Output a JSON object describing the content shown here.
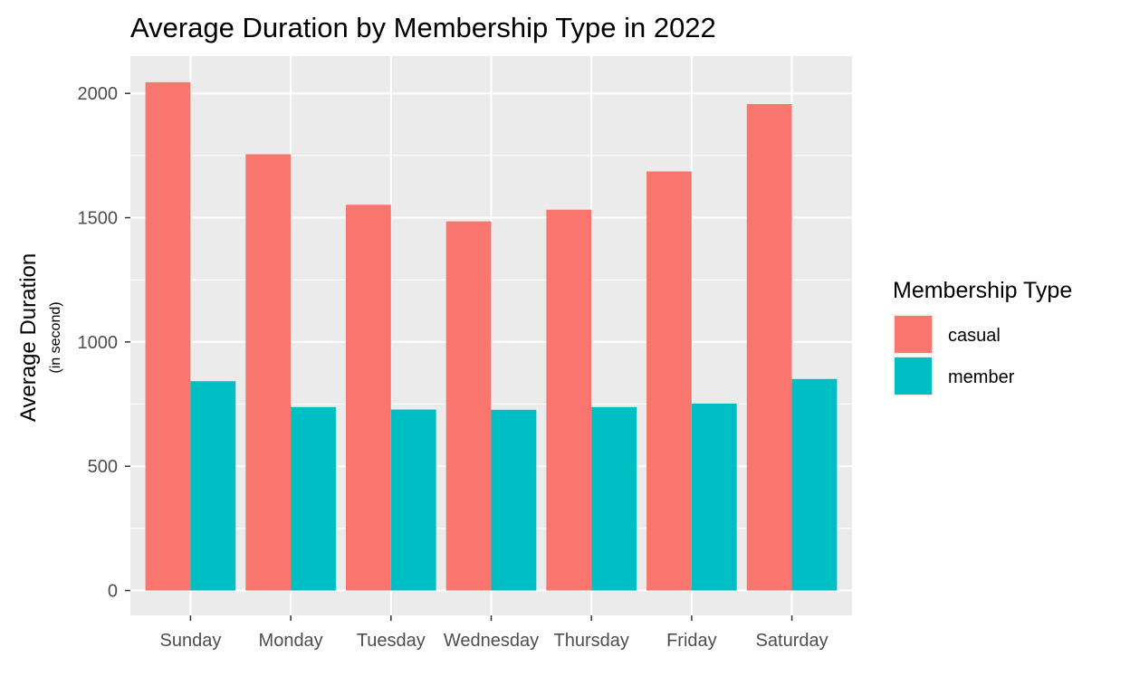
{
  "chart_data": {
    "type": "bar",
    "title": "Average Duration by Membership Type in 2022",
    "ylabel": "Average Duration",
    "ylabel_sub": "(in second)",
    "xlabel": "",
    "categories": [
      "Sunday",
      "Monday",
      "Tuesday",
      "Wednesday",
      "Thursday",
      "Friday",
      "Saturday"
    ],
    "series": [
      {
        "name": "casual",
        "color": "#F8766D",
        "values": [
          2045,
          1755,
          1552,
          1485,
          1532,
          1686,
          1957
        ]
      },
      {
        "name": "member",
        "color": "#00BFC4",
        "values": [
          842,
          738,
          728,
          727,
          738,
          752,
          851
        ]
      }
    ],
    "ylim": [
      -100,
      2150
    ],
    "yticks": [
      0,
      500,
      1000,
      1500,
      2000
    ],
    "ytick_labels": [
      "0",
      "500",
      "1000",
      "1500",
      "2000"
    ],
    "grid": true,
    "panel_background": "#EBEBEB",
    "legend": {
      "title": "Membership Type",
      "position": "right"
    }
  }
}
